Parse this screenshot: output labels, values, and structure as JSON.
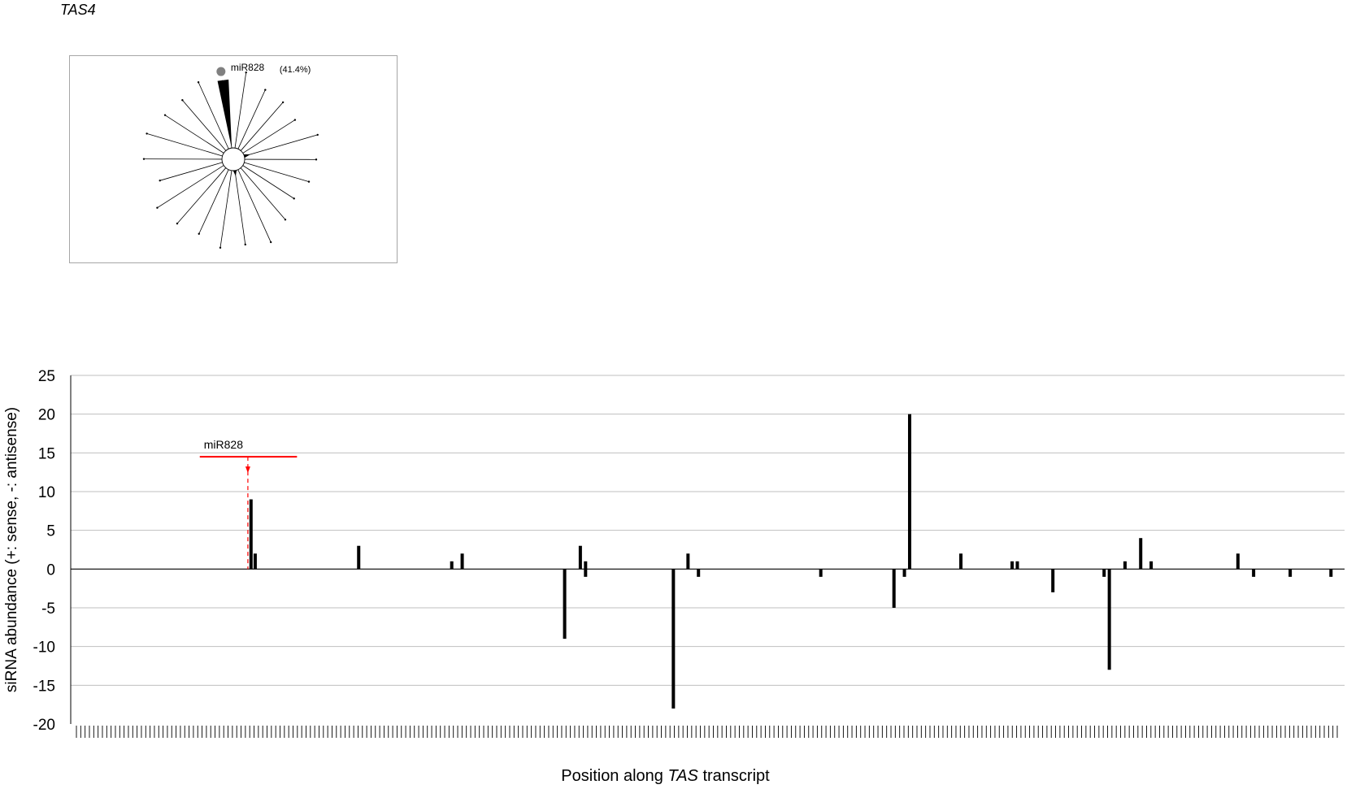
{
  "title": "TAS4",
  "radial": {
    "spokes": 22,
    "accent_color": "#808080",
    "highlight_spoke_index": 0,
    "highlight_fraction": 0.414,
    "label": "miR828",
    "percent_label": "(41.4%)",
    "minor_marks": [
      {
        "spoke_index": 5,
        "fraction": 0.08
      },
      {
        "spoke_index": 11,
        "fraction": 0.07
      }
    ]
  },
  "chart_data": {
    "type": "bar",
    "title": "",
    "xlabel_pre": "Position along ",
    "xlabel_italic": "TAS",
    "xlabel_post": " transcript",
    "ylabel": "siRNA abundance (+: sense, -: antisense)",
    "ylim": [
      -20,
      25
    ],
    "yticks": [
      25,
      20,
      15,
      10,
      5,
      0,
      -5,
      -10,
      -15,
      -20
    ],
    "grid": true,
    "bar_color": "#000000",
    "x_count": 1207,
    "annotation": {
      "label": "miR828",
      "color": "#ff0000",
      "y": 14.5,
      "start": 119,
      "end": 212,
      "cleavage": 165
    },
    "bars": [
      {
        "x": 168,
        "value": 9
      },
      {
        "x": 172,
        "value": 2
      },
      {
        "x": 271,
        "value": 3
      },
      {
        "x": 360,
        "value": 1
      },
      {
        "x": 370,
        "value": 2
      },
      {
        "x": 468,
        "value": -9
      },
      {
        "x": 483,
        "value": 3
      },
      {
        "x": 488,
        "value": 1
      },
      {
        "x": 488,
        "value": -1
      },
      {
        "x": 572,
        "value": -18
      },
      {
        "x": 586,
        "value": 2
      },
      {
        "x": 596,
        "value": -1
      },
      {
        "x": 713,
        "value": -1
      },
      {
        "x": 783,
        "value": -5
      },
      {
        "x": 793,
        "value": -1
      },
      {
        "x": 798,
        "value": 20
      },
      {
        "x": 847,
        "value": 2
      },
      {
        "x": 896,
        "value": 1
      },
      {
        "x": 901,
        "value": 1
      },
      {
        "x": 935,
        "value": -3
      },
      {
        "x": 984,
        "value": -1
      },
      {
        "x": 989,
        "value": -13
      },
      {
        "x": 1004,
        "value": 1
      },
      {
        "x": 1019,
        "value": 4
      },
      {
        "x": 1029,
        "value": 1
      },
      {
        "x": 1112,
        "value": 2
      },
      {
        "x": 1127,
        "value": -1
      },
      {
        "x": 1162,
        "value": -1
      },
      {
        "x": 1201,
        "value": -1
      }
    ]
  }
}
